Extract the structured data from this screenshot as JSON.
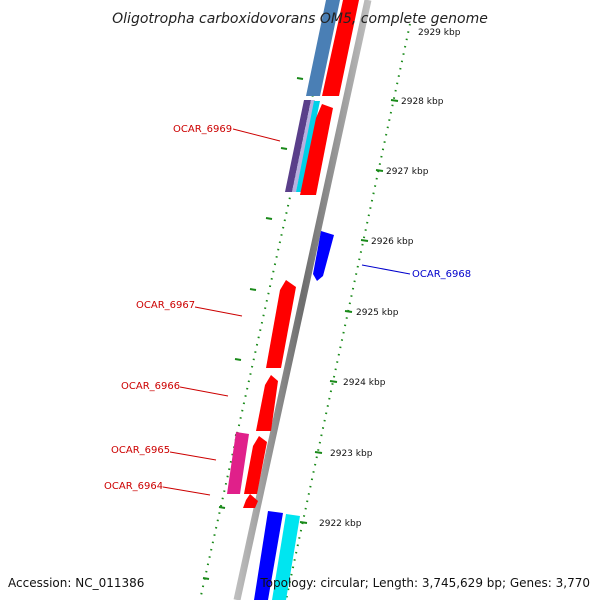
{
  "title": "Oligotropha carboxidovorans OM5, complete genome",
  "accession": "Accession: NC_011386",
  "topology": "Topology: circular; Length: 3,745,629 bp; Genes: 3,770",
  "colors": {
    "backbone": "#888888",
    "tick": "#1a8a1a",
    "forward_gene": "#ff0000",
    "reverse_gene": "#0000ff",
    "gene_magenta": "#e0208a",
    "gene_cyan": "#00e5f0",
    "gene_steelblue": "#4a7fb5",
    "gene_purple": "#5a3f8a",
    "forward_label": "#cc0000",
    "reverse_label": "#0000cc"
  },
  "ticks": [
    {
      "label": "2929 kbp"
    },
    {
      "label": "2928 kbp"
    },
    {
      "label": "2927 kbp"
    },
    {
      "label": "2926 kbp"
    },
    {
      "label": "2925 kbp"
    },
    {
      "label": "2924 kbp"
    },
    {
      "label": "2923 kbp"
    },
    {
      "label": "2922 kbp"
    }
  ],
  "gene_labels": {
    "ocar_6969": "OCAR_6969",
    "ocar_6968": "OCAR_6968",
    "ocar_6967": "OCAR_6967",
    "ocar_6966": "OCAR_6966",
    "ocar_6965": "OCAR_6965",
    "ocar_6964": "OCAR_6964"
  }
}
